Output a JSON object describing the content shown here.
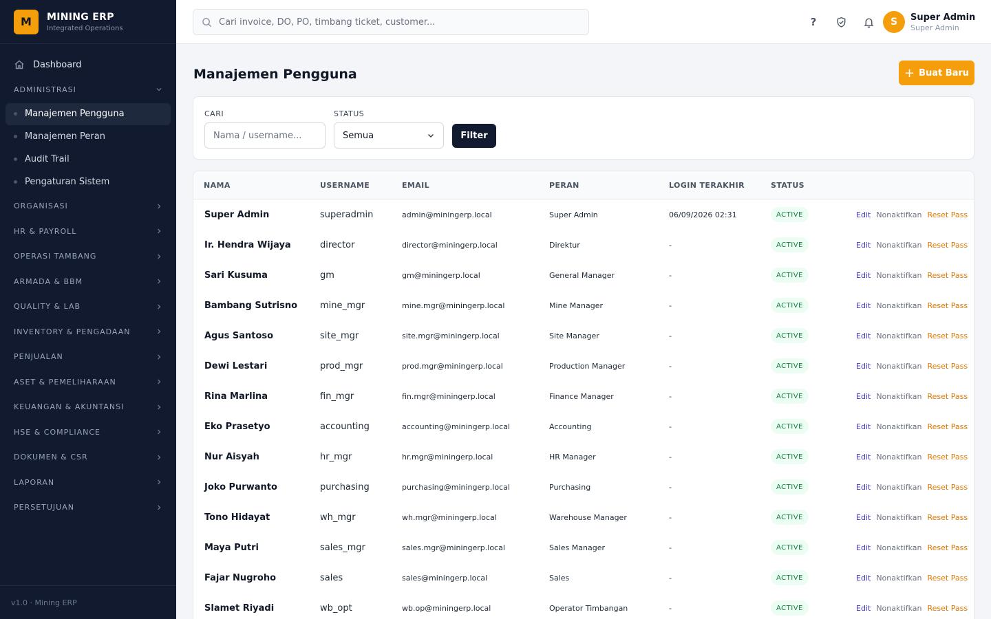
{
  "brand": {
    "logo": "M",
    "name": "MINING ERP",
    "subtitle": "Integrated Operations"
  },
  "sidebar": {
    "dashboard": "Dashboard",
    "admin_section": "ADMINISTRASI",
    "admin_items": [
      "Manajemen Pengguna",
      "Manajemen Peran",
      "Audit Trail",
      "Pengaturan Sistem"
    ],
    "sections": [
      "ORGANISASI",
      "HR & PAYROLL",
      "OPERASI TAMBANG",
      "ARMADA & BBM",
      "QUALITY & LAB",
      "INVENTORY & PENGADAAN",
      "PENJUALAN",
      "ASET & PEMELIHARAAN",
      "KEUANGAN & AKUNTANSI",
      "HSE & COMPLIANCE",
      "DOKUMEN & CSR",
      "LAPORAN",
      "PERSETUJUAN"
    ],
    "footer": "v1.0 · Mining ERP"
  },
  "topbar": {
    "search_placeholder": "Cari invoice, DO, PO, timbang ticket, customer...",
    "help": "?",
    "user_initial": "S",
    "user_name": "Super Admin",
    "user_role": "Super Admin"
  },
  "page": {
    "title": "Manajemen Pengguna",
    "new_button": "Buat Baru"
  },
  "filters": {
    "search_label": "CARI",
    "search_placeholder": "Nama / username...",
    "status_label": "STATUS",
    "status_value": "Semua",
    "filter_button": "Filter"
  },
  "table": {
    "headers": [
      "NAMA",
      "USERNAME",
      "EMAIL",
      "PERAN",
      "LOGIN TERAKHIR",
      "STATUS"
    ],
    "actions": {
      "edit": "Edit",
      "deactivate": "Nonaktifkan",
      "reset": "Reset Pass"
    },
    "rows": [
      {
        "name": "Super Admin",
        "username": "superadmin",
        "email": "admin@miningerp.local",
        "role": "Super Admin",
        "last_login": "06/09/2026 02:31",
        "status": "ACTIVE"
      },
      {
        "name": "Ir. Hendra Wijaya",
        "username": "director",
        "email": "director@miningerp.local",
        "role": "Direktur",
        "last_login": "-",
        "status": "ACTIVE"
      },
      {
        "name": "Sari Kusuma",
        "username": "gm",
        "email": "gm@miningerp.local",
        "role": "General Manager",
        "last_login": "-",
        "status": "ACTIVE"
      },
      {
        "name": "Bambang Sutrisno",
        "username": "mine_mgr",
        "email": "mine.mgr@miningerp.local",
        "role": "Mine Manager",
        "last_login": "-",
        "status": "ACTIVE"
      },
      {
        "name": "Agus Santoso",
        "username": "site_mgr",
        "email": "site.mgr@miningerp.local",
        "role": "Site Manager",
        "last_login": "-",
        "status": "ACTIVE"
      },
      {
        "name": "Dewi Lestari",
        "username": "prod_mgr",
        "email": "prod.mgr@miningerp.local",
        "role": "Production Manager",
        "last_login": "-",
        "status": "ACTIVE"
      },
      {
        "name": "Rina Marlina",
        "username": "fin_mgr",
        "email": "fin.mgr@miningerp.local",
        "role": "Finance Manager",
        "last_login": "-",
        "status": "ACTIVE"
      },
      {
        "name": "Eko Prasetyo",
        "username": "accounting",
        "email": "accounting@miningerp.local",
        "role": "Accounting",
        "last_login": "-",
        "status": "ACTIVE"
      },
      {
        "name": "Nur Aisyah",
        "username": "hr_mgr",
        "email": "hr.mgr@miningerp.local",
        "role": "HR Manager",
        "last_login": "-",
        "status": "ACTIVE"
      },
      {
        "name": "Joko Purwanto",
        "username": "purchasing",
        "email": "purchasing@miningerp.local",
        "role": "Purchasing",
        "last_login": "-",
        "status": "ACTIVE"
      },
      {
        "name": "Tono Hidayat",
        "username": "wh_mgr",
        "email": "wh.mgr@miningerp.local",
        "role": "Warehouse Manager",
        "last_login": "-",
        "status": "ACTIVE"
      },
      {
        "name": "Maya Putri",
        "username": "sales_mgr",
        "email": "sales.mgr@miningerp.local",
        "role": "Sales Manager",
        "last_login": "-",
        "status": "ACTIVE"
      },
      {
        "name": "Fajar Nugroho",
        "username": "sales",
        "email": "sales@miningerp.local",
        "role": "Sales",
        "last_login": "-",
        "status": "ACTIVE"
      },
      {
        "name": "Slamet Riyadi",
        "username": "wb_opt",
        "email": "wb.op@miningerp.local",
        "role": "Operator Timbangan",
        "last_login": "-",
        "status": "ACTIVE"
      }
    ]
  },
  "colors": {
    "accent": "#f59e0b",
    "sidebar_bg": "#111a2e",
    "status_active": "#15803d"
  },
  "icons": [
    "home-icon",
    "chevron-down-icon",
    "chevron-right-icon",
    "search-icon",
    "help-icon",
    "shield-check-icon",
    "bell-icon",
    "plus-icon"
  ]
}
